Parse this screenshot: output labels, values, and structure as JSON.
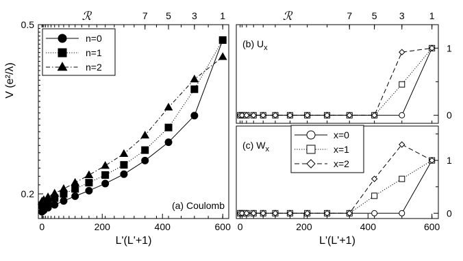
{
  "chart_data": [
    {
      "id": "a",
      "type": "line",
      "annotation": "(a) Coulomb",
      "xlabel": "L'(L'+1)",
      "ylabel": "V (e²/λ)",
      "yscale": "log",
      "xlim": [
        -12,
        620
      ],
      "ylim": [
        0.175,
        0.5
      ],
      "xticks": [
        "0",
        "200",
        "400",
        "600"
      ],
      "yticks": [
        "0.5",
        "0.2"
      ],
      "top_axis": {
        "label": "ℛ",
        "ticks": [
          "7",
          "5",
          "3",
          "1"
        ],
        "tick_x": [
          342,
          420,
          506,
          600
        ]
      },
      "legend": {
        "placement": "top-left",
        "entries": [
          "n=0",
          "n=1",
          "n=2"
        ]
      },
      "x": [
        0,
        2,
        6,
        12,
        20,
        30,
        42,
        56,
        72,
        90,
        110,
        132,
        156,
        182,
        210,
        240,
        272,
        306,
        342,
        380,
        420,
        462,
        506,
        552,
        600
      ],
      "series": [
        {
          "name": "n=0",
          "marker": "circle",
          "dash": "solid",
          "x": [
            0,
            6,
            20,
            42,
            72,
            110,
            156,
            210,
            272,
            342,
            420,
            506,
            600
          ],
          "values": [
            0.1815,
            0.183,
            0.1855,
            0.1885,
            0.1925,
            0.1975,
            0.2035,
            0.2115,
            0.2225,
            0.2395,
            0.2645,
            0.3055,
            0.46
          ]
        },
        {
          "name": "n=1",
          "marker": "square",
          "dash": "dotted",
          "x": [
            0,
            6,
            20,
            42,
            72,
            110,
            156,
            210,
            272,
            342,
            420,
            506,
            600
          ],
          "values": [
            0.188,
            0.1895,
            0.192,
            0.1955,
            0.2,
            0.2055,
            0.2125,
            0.2215,
            0.234,
            0.2535,
            0.2865,
            0.3525,
            0.46
          ]
        },
        {
          "name": "n=2",
          "marker": "triangle",
          "dash": "dashdot",
          "x": [
            0,
            6,
            20,
            42,
            72,
            110,
            156,
            210,
            272,
            342,
            420,
            506,
            600
          ],
          "values": [
            0.192,
            0.1935,
            0.1965,
            0.2005,
            0.2055,
            0.2125,
            0.2215,
            0.233,
            0.2485,
            0.2745,
            0.3195,
            0.372,
            0.42
          ]
        }
      ]
    },
    {
      "id": "b",
      "type": "line",
      "annotation": "(b) Ux",
      "xlim": [
        -12,
        620
      ],
      "ylim": [
        -0.12,
        1.35
      ],
      "yticks": [
        "0",
        "1"
      ],
      "top_axis": {
        "label": "ℛ",
        "ticks": [
          "7",
          "5",
          "3",
          "1"
        ],
        "tick_x": [
          342,
          420,
          506,
          600
        ]
      },
      "series": [
        {
          "name": "x=0",
          "marker": "circle",
          "dash": "solid",
          "x": [
            0,
            6,
            20,
            42,
            72,
            110,
            156,
            210,
            272,
            342,
            420,
            506,
            600
          ],
          "values": [
            0,
            0,
            0,
            0,
            0,
            0,
            0,
            0,
            0,
            0,
            0,
            0,
            1
          ]
        },
        {
          "name": "x=1",
          "marker": "square",
          "dash": "dotted",
          "x": [
            0,
            6,
            20,
            42,
            72,
            110,
            156,
            210,
            272,
            342,
            420,
            506,
            600
          ],
          "values": [
            0,
            0,
            0,
            0,
            0,
            0,
            0,
            0,
            0,
            0,
            0,
            0.46,
            1
          ]
        },
        {
          "name": "x=2",
          "marker": "diamond",
          "dash": "dashed",
          "x": [
            0,
            6,
            20,
            42,
            72,
            110,
            156,
            210,
            272,
            342,
            420,
            506,
            600
          ],
          "values": [
            0,
            0,
            0,
            0,
            0,
            0,
            0,
            0,
            0,
            0,
            0,
            0.94,
            1
          ]
        }
      ]
    },
    {
      "id": "c",
      "type": "line",
      "annotation": "(c) Wx",
      "xlabel": "L'(L'+1)",
      "xlim": [
        -12,
        620
      ],
      "ylim": [
        -0.1,
        1.65
      ],
      "xticks": [
        "0",
        "200",
        "400",
        "600"
      ],
      "yticks": [
        "0",
        "1"
      ],
      "legend": {
        "placement": "top-left",
        "entries": [
          "x=0",
          "x=1",
          "x=2"
        ]
      },
      "series": [
        {
          "name": "x=0",
          "marker": "circle",
          "dash": "solid",
          "x": [
            0,
            6,
            20,
            42,
            72,
            110,
            156,
            210,
            272,
            342,
            420,
            506,
            600
          ],
          "values": [
            0,
            0,
            0,
            0,
            0,
            0,
            0,
            0,
            0,
            0,
            0,
            0,
            1
          ]
        },
        {
          "name": "x=1",
          "marker": "square",
          "dash": "dotted",
          "x": [
            0,
            6,
            20,
            42,
            72,
            110,
            156,
            210,
            272,
            342,
            420,
            506,
            600
          ],
          "values": [
            0,
            0,
            0,
            0,
            0,
            0,
            0,
            0,
            0,
            0,
            0.33,
            0.65,
            1
          ]
        },
        {
          "name": "x=2",
          "marker": "diamond",
          "dash": "dashed",
          "x": [
            0,
            6,
            20,
            42,
            72,
            110,
            156,
            210,
            272,
            342,
            420,
            506,
            600
          ],
          "values": [
            0,
            0,
            0,
            0,
            0,
            0,
            0,
            0,
            0,
            0,
            0.65,
            1.3,
            1
          ]
        }
      ]
    }
  ]
}
